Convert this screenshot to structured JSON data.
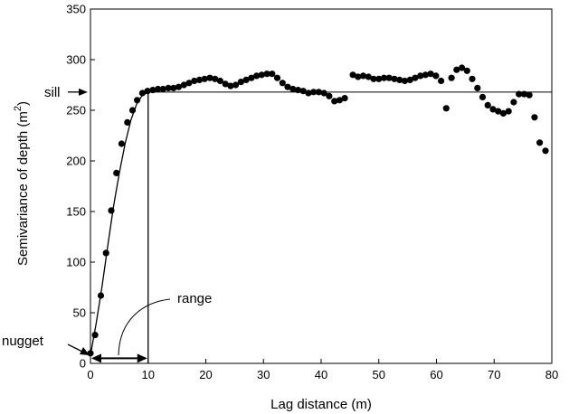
{
  "chart_data": {
    "type": "scatter",
    "xlabel": "Lag distance (m)",
    "ylabel_main": "Semivariance of depth (m",
    "ylabel_sup": "2",
    "ylabel_close": ")",
    "xlim": [
      0,
      80
    ],
    "ylim": [
      0,
      350
    ],
    "x_ticks": [
      0,
      10,
      20,
      30,
      40,
      50,
      60,
      70,
      80
    ],
    "y_ticks": [
      0,
      50,
      100,
      150,
      200,
      250,
      300,
      350
    ],
    "grid": false,
    "series": [
      {
        "points": [
          [
            0,
            10
          ],
          [
            0.8,
            28
          ],
          [
            1.8,
            67
          ],
          [
            2.7,
            109
          ],
          [
            3.6,
            151
          ],
          [
            4.5,
            188
          ],
          [
            5.4,
            217
          ],
          [
            6.4,
            238
          ],
          [
            7.3,
            250
          ],
          [
            8.1,
            260
          ],
          [
            9,
            267
          ],
          [
            9.9,
            269
          ],
          [
            10.8,
            270
          ],
          [
            11.7,
            271
          ],
          [
            12.6,
            271
          ],
          [
            13.5,
            272
          ],
          [
            14.4,
            272
          ],
          [
            15.3,
            273
          ],
          [
            16.2,
            275
          ],
          [
            17.1,
            277
          ],
          [
            18,
            279
          ],
          [
            18.9,
            280
          ],
          [
            19.8,
            281
          ],
          [
            20.7,
            282
          ],
          [
            21.6,
            281
          ],
          [
            22.5,
            279
          ],
          [
            23.4,
            276
          ],
          [
            24.3,
            274
          ],
          [
            25.2,
            275
          ],
          [
            26.1,
            278
          ],
          [
            27,
            280
          ],
          [
            27.9,
            282
          ],
          [
            28.8,
            284
          ],
          [
            29.7,
            285
          ],
          [
            30.6,
            286
          ],
          [
            31.5,
            286
          ],
          [
            32.4,
            282
          ],
          [
            33.3,
            277
          ],
          [
            34.2,
            273
          ],
          [
            35.1,
            271
          ],
          [
            36,
            270
          ],
          [
            36.9,
            269
          ],
          [
            37.8,
            267
          ],
          [
            38.7,
            268
          ],
          [
            39.6,
            268
          ],
          [
            40.5,
            267
          ],
          [
            41.4,
            264
          ],
          [
            42.3,
            259
          ],
          [
            43.2,
            260
          ],
          [
            44.1,
            262
          ],
          [
            45.5,
            285
          ],
          [
            46.4,
            283
          ],
          [
            47.3,
            284
          ],
          [
            48.2,
            283
          ],
          [
            49.1,
            281
          ],
          [
            50,
            281
          ],
          [
            50.9,
            282
          ],
          [
            51.8,
            282
          ],
          [
            52.7,
            281
          ],
          [
            53.6,
            280
          ],
          [
            54.5,
            279
          ],
          [
            55.4,
            280
          ],
          [
            56.3,
            282
          ],
          [
            57.2,
            284
          ],
          [
            58.1,
            285
          ],
          [
            59,
            286
          ],
          [
            59.9,
            284
          ],
          [
            60.8,
            279
          ],
          [
            61.7,
            252
          ],
          [
            62.6,
            282
          ],
          [
            63.5,
            290
          ],
          [
            64.4,
            292
          ],
          [
            65.3,
            289
          ],
          [
            66.2,
            281
          ],
          [
            67.1,
            272
          ],
          [
            68,
            263
          ],
          [
            68.9,
            255
          ],
          [
            69.8,
            251
          ],
          [
            70.7,
            249
          ],
          [
            71.6,
            247
          ],
          [
            72.5,
            249
          ],
          [
            73.4,
            258
          ],
          [
            74.3,
            266
          ],
          [
            75.2,
            266
          ],
          [
            76.1,
            265
          ],
          [
            77,
            243
          ],
          [
            77.9,
            218
          ],
          [
            78.9,
            210
          ]
        ]
      }
    ],
    "model_curve": [
      [
        0,
        8
      ],
      [
        1,
        40
      ],
      [
        2,
        76
      ],
      [
        3,
        116
      ],
      [
        4,
        155
      ],
      [
        5,
        188
      ],
      [
        6,
        217
      ],
      [
        7,
        240
      ],
      [
        8,
        256
      ],
      [
        9,
        265
      ],
      [
        10,
        268
      ]
    ],
    "sill_value": 268,
    "range_value": 10,
    "annotations": {
      "sill": "sill",
      "range": "range",
      "nugget": "nugget"
    }
  }
}
